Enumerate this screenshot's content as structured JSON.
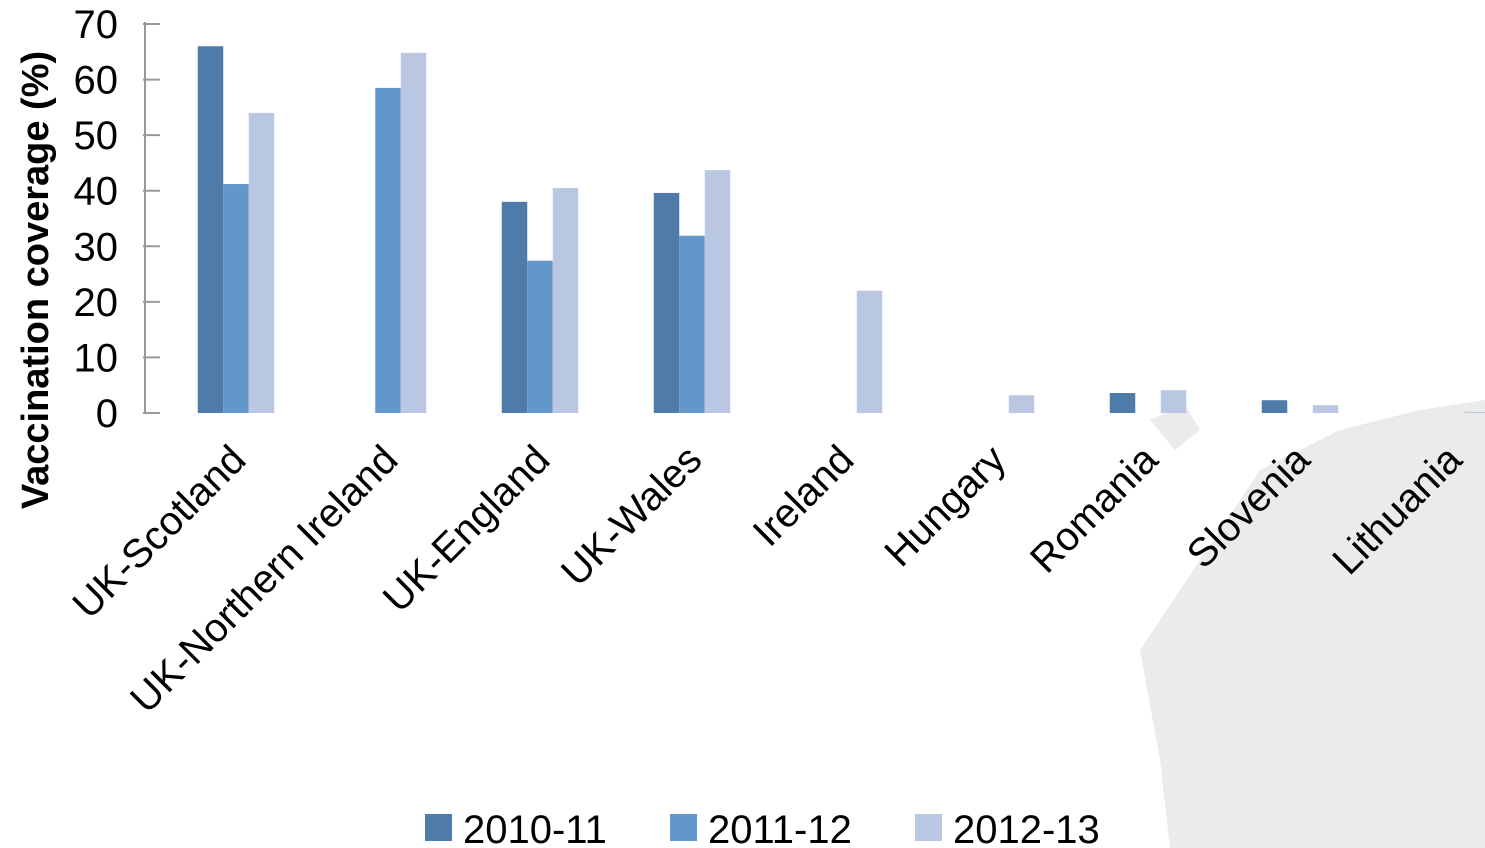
{
  "chart_data": {
    "type": "bar",
    "y_label": "Vaccination coverage (%)",
    "categories": [
      "UK-Scotland",
      "UK-Northern Ireland",
      "UK-England",
      "UK-Wales",
      "Ireland",
      "Hungary",
      "Romania",
      "Slovenia",
      "Lithuania"
    ],
    "series": [
      {
        "name": "2010-11",
        "color": "#4f7bab",
        "values": [
          66,
          null,
          38,
          39.6,
          null,
          null,
          3.6,
          2.3,
          null
        ]
      },
      {
        "name": "2011-12",
        "color": "#6396cb",
        "values": [
          41.2,
          58.5,
          27.4,
          31.9,
          null,
          null,
          null,
          null,
          null
        ]
      },
      {
        "name": "2012-13",
        "color": "#b9c7e2",
        "values": [
          54,
          64.8,
          40.5,
          43.7,
          22,
          3.2,
          4.1,
          1.4,
          0.2
        ]
      }
    ],
    "ylim": [
      0,
      70
    ],
    "yticks": [
      0,
      10,
      20,
      30,
      40,
      50,
      60,
      70
    ],
    "legend": "bottom"
  }
}
